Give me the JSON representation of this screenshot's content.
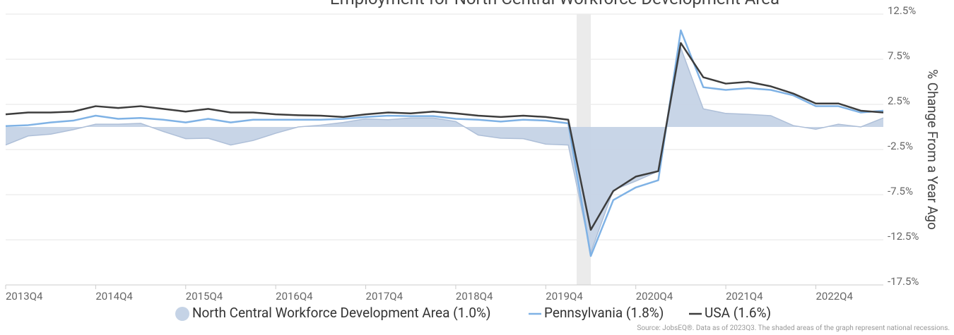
{
  "chart_data": {
    "type": "line",
    "title": "Employment for North Central Workforce Development Area",
    "y_axis_label": "% Change From a Year Ago",
    "source": "Source: JobsEQ®. Data as of 2023Q3. The shaded areas of the graph represent national recessions.",
    "categories": [
      "2013Q4",
      null,
      null,
      null,
      "2014Q4",
      null,
      null,
      null,
      "2015Q4",
      null,
      null,
      null,
      "2016Q4",
      null,
      null,
      null,
      "2017Q4",
      null,
      null,
      null,
      "2018Q4",
      null,
      null,
      null,
      "2019Q4",
      null,
      null,
      null,
      "2020Q4",
      null,
      null,
      null,
      "2021Q4",
      null,
      null,
      null,
      "2022Q4",
      null,
      null,
      null
    ],
    "series": [
      {
        "name": "North Central Workforce Development Area (1.0%)",
        "style": "area",
        "color": "#c5d3e6",
        "values": [
          -2.0,
          -1.0,
          -0.8,
          -0.3,
          0.3,
          0.3,
          0.4,
          -0.5,
          -1.3,
          -1.25,
          -2.0,
          -1.5,
          -0.7,
          0.0,
          0.2,
          0.5,
          0.9,
          0.8,
          1.0,
          1.0,
          0.6,
          -0.9,
          -1.25,
          -1.3,
          -1.9,
          -2.0,
          -13.9,
          -7.0,
          -6.0,
          -4.9,
          8.75,
          2.0,
          1.5,
          1.4,
          1.25,
          0.15,
          -0.25,
          0.3,
          0.0,
          1.0
        ]
      },
      {
        "name": "Pennsylvania (1.8%)",
        "style": "line",
        "color": "#7fb2e5",
        "values": [
          0.1,
          0.2,
          0.5,
          0.7,
          1.25,
          0.9,
          1.0,
          0.8,
          0.5,
          0.9,
          0.5,
          0.8,
          0.8,
          0.8,
          0.8,
          0.9,
          1.1,
          1.25,
          1.2,
          1.2,
          0.9,
          0.8,
          0.6,
          0.8,
          0.7,
          0.4,
          -14.3,
          -8.1,
          -6.7,
          -5.9,
          10.7,
          4.4,
          4.1,
          4.3,
          4.1,
          3.5,
          2.3,
          2.3,
          1.6,
          1.8
        ]
      },
      {
        "name": "USA (1.6%)",
        "style": "line",
        "color": "#3d3d3d",
        "values": [
          1.4,
          1.6,
          1.6,
          1.7,
          2.3,
          2.1,
          2.3,
          2.0,
          1.7,
          2.0,
          1.6,
          1.6,
          1.4,
          1.3,
          1.25,
          1.1,
          1.4,
          1.6,
          1.5,
          1.7,
          1.5,
          1.25,
          1.1,
          1.25,
          1.1,
          0.8,
          -11.4,
          -7.1,
          -5.5,
          -4.9,
          9.3,
          5.5,
          4.8,
          5.0,
          4.5,
          3.7,
          2.6,
          2.6,
          1.8,
          1.6
        ]
      }
    ],
    "ylim": [
      -17.5,
      12.5
    ],
    "yticks": [
      {
        "value": 12.5,
        "label": "12.5%"
      },
      {
        "value": 7.5,
        "label": "7.5%"
      },
      {
        "value": 2.5,
        "label": "2.5%"
      },
      {
        "value": -2.5,
        "label": "-2.5%"
      },
      {
        "value": -7.5,
        "label": "-7.5%"
      },
      {
        "value": -12.5,
        "label": "-12.5%"
      },
      {
        "value": -17.5,
        "label": "-17.5%"
      }
    ],
    "grid": true
  }
}
